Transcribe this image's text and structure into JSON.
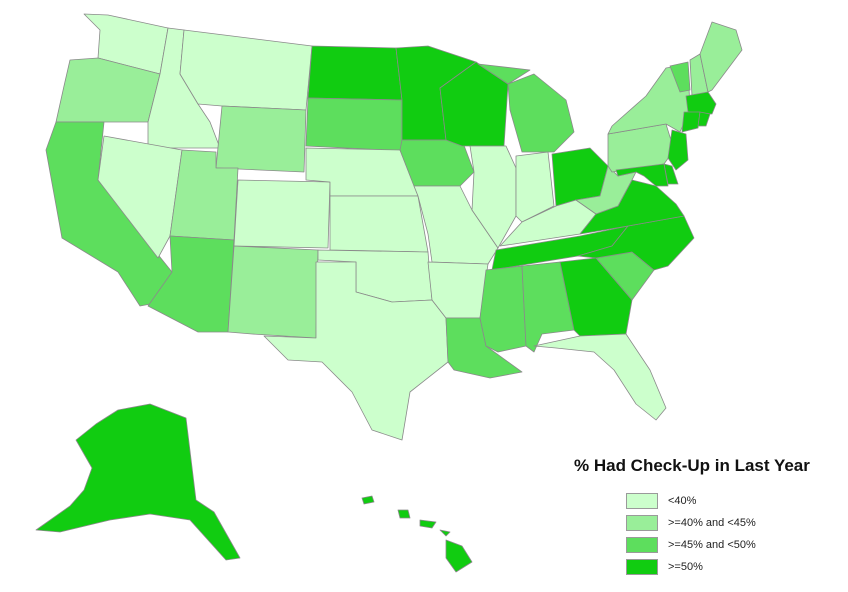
{
  "legend": {
    "title": "% Had Check-Up in Last Year",
    "items": [
      {
        "label": "<40%",
        "color": "#ccffcc"
      },
      {
        "label": ">=40% and <45%",
        "color": "#99ee99"
      },
      {
        "label": ">=45% and <50%",
        "color": "#5dde5d"
      },
      {
        "label": ">=50%",
        "color": "#11cc11"
      }
    ]
  },
  "states": [
    {
      "id": "WA",
      "cat": 0
    },
    {
      "id": "OR",
      "cat": 1
    },
    {
      "id": "CA",
      "cat": 2
    },
    {
      "id": "ID",
      "cat": 0
    },
    {
      "id": "NV",
      "cat": 0
    },
    {
      "id": "MT",
      "cat": 0
    },
    {
      "id": "WY",
      "cat": 1
    },
    {
      "id": "UT",
      "cat": 1
    },
    {
      "id": "AZ",
      "cat": 2
    },
    {
      "id": "CO",
      "cat": 0
    },
    {
      "id": "NM",
      "cat": 1
    },
    {
      "id": "ND",
      "cat": 3
    },
    {
      "id": "SD",
      "cat": 2
    },
    {
      "id": "NE",
      "cat": 0
    },
    {
      "id": "KS",
      "cat": 0
    },
    {
      "id": "OK",
      "cat": 0
    },
    {
      "id": "TX",
      "cat": 0
    },
    {
      "id": "MN",
      "cat": 3
    },
    {
      "id": "IA",
      "cat": 2
    },
    {
      "id": "MO",
      "cat": 0
    },
    {
      "id": "AR",
      "cat": 0
    },
    {
      "id": "LA",
      "cat": 2
    },
    {
      "id": "WI",
      "cat": 3
    },
    {
      "id": "IL",
      "cat": 0
    },
    {
      "id": "MI",
      "cat": 2
    },
    {
      "id": "IN",
      "cat": 0
    },
    {
      "id": "OH",
      "cat": 3
    },
    {
      "id": "KY",
      "cat": 0
    },
    {
      "id": "TN",
      "cat": 3
    },
    {
      "id": "MS",
      "cat": 2
    },
    {
      "id": "AL",
      "cat": 2
    },
    {
      "id": "GA",
      "cat": 3
    },
    {
      "id": "FL",
      "cat": 0
    },
    {
      "id": "SC",
      "cat": 2
    },
    {
      "id": "NC",
      "cat": 3
    },
    {
      "id": "VA",
      "cat": 3
    },
    {
      "id": "WV",
      "cat": 1
    },
    {
      "id": "PA",
      "cat": 1
    },
    {
      "id": "NY",
      "cat": 1
    },
    {
      "id": "VT",
      "cat": 2
    },
    {
      "id": "NH",
      "cat": 1
    },
    {
      "id": "ME",
      "cat": 1
    },
    {
      "id": "MA",
      "cat": 3
    },
    {
      "id": "CT",
      "cat": 3
    },
    {
      "id": "RI",
      "cat": 3
    },
    {
      "id": "NJ",
      "cat": 3
    },
    {
      "id": "DE",
      "cat": 3
    },
    {
      "id": "MD",
      "cat": 3
    },
    {
      "id": "AK",
      "cat": 3
    },
    {
      "id": "HI",
      "cat": 3
    }
  ]
}
